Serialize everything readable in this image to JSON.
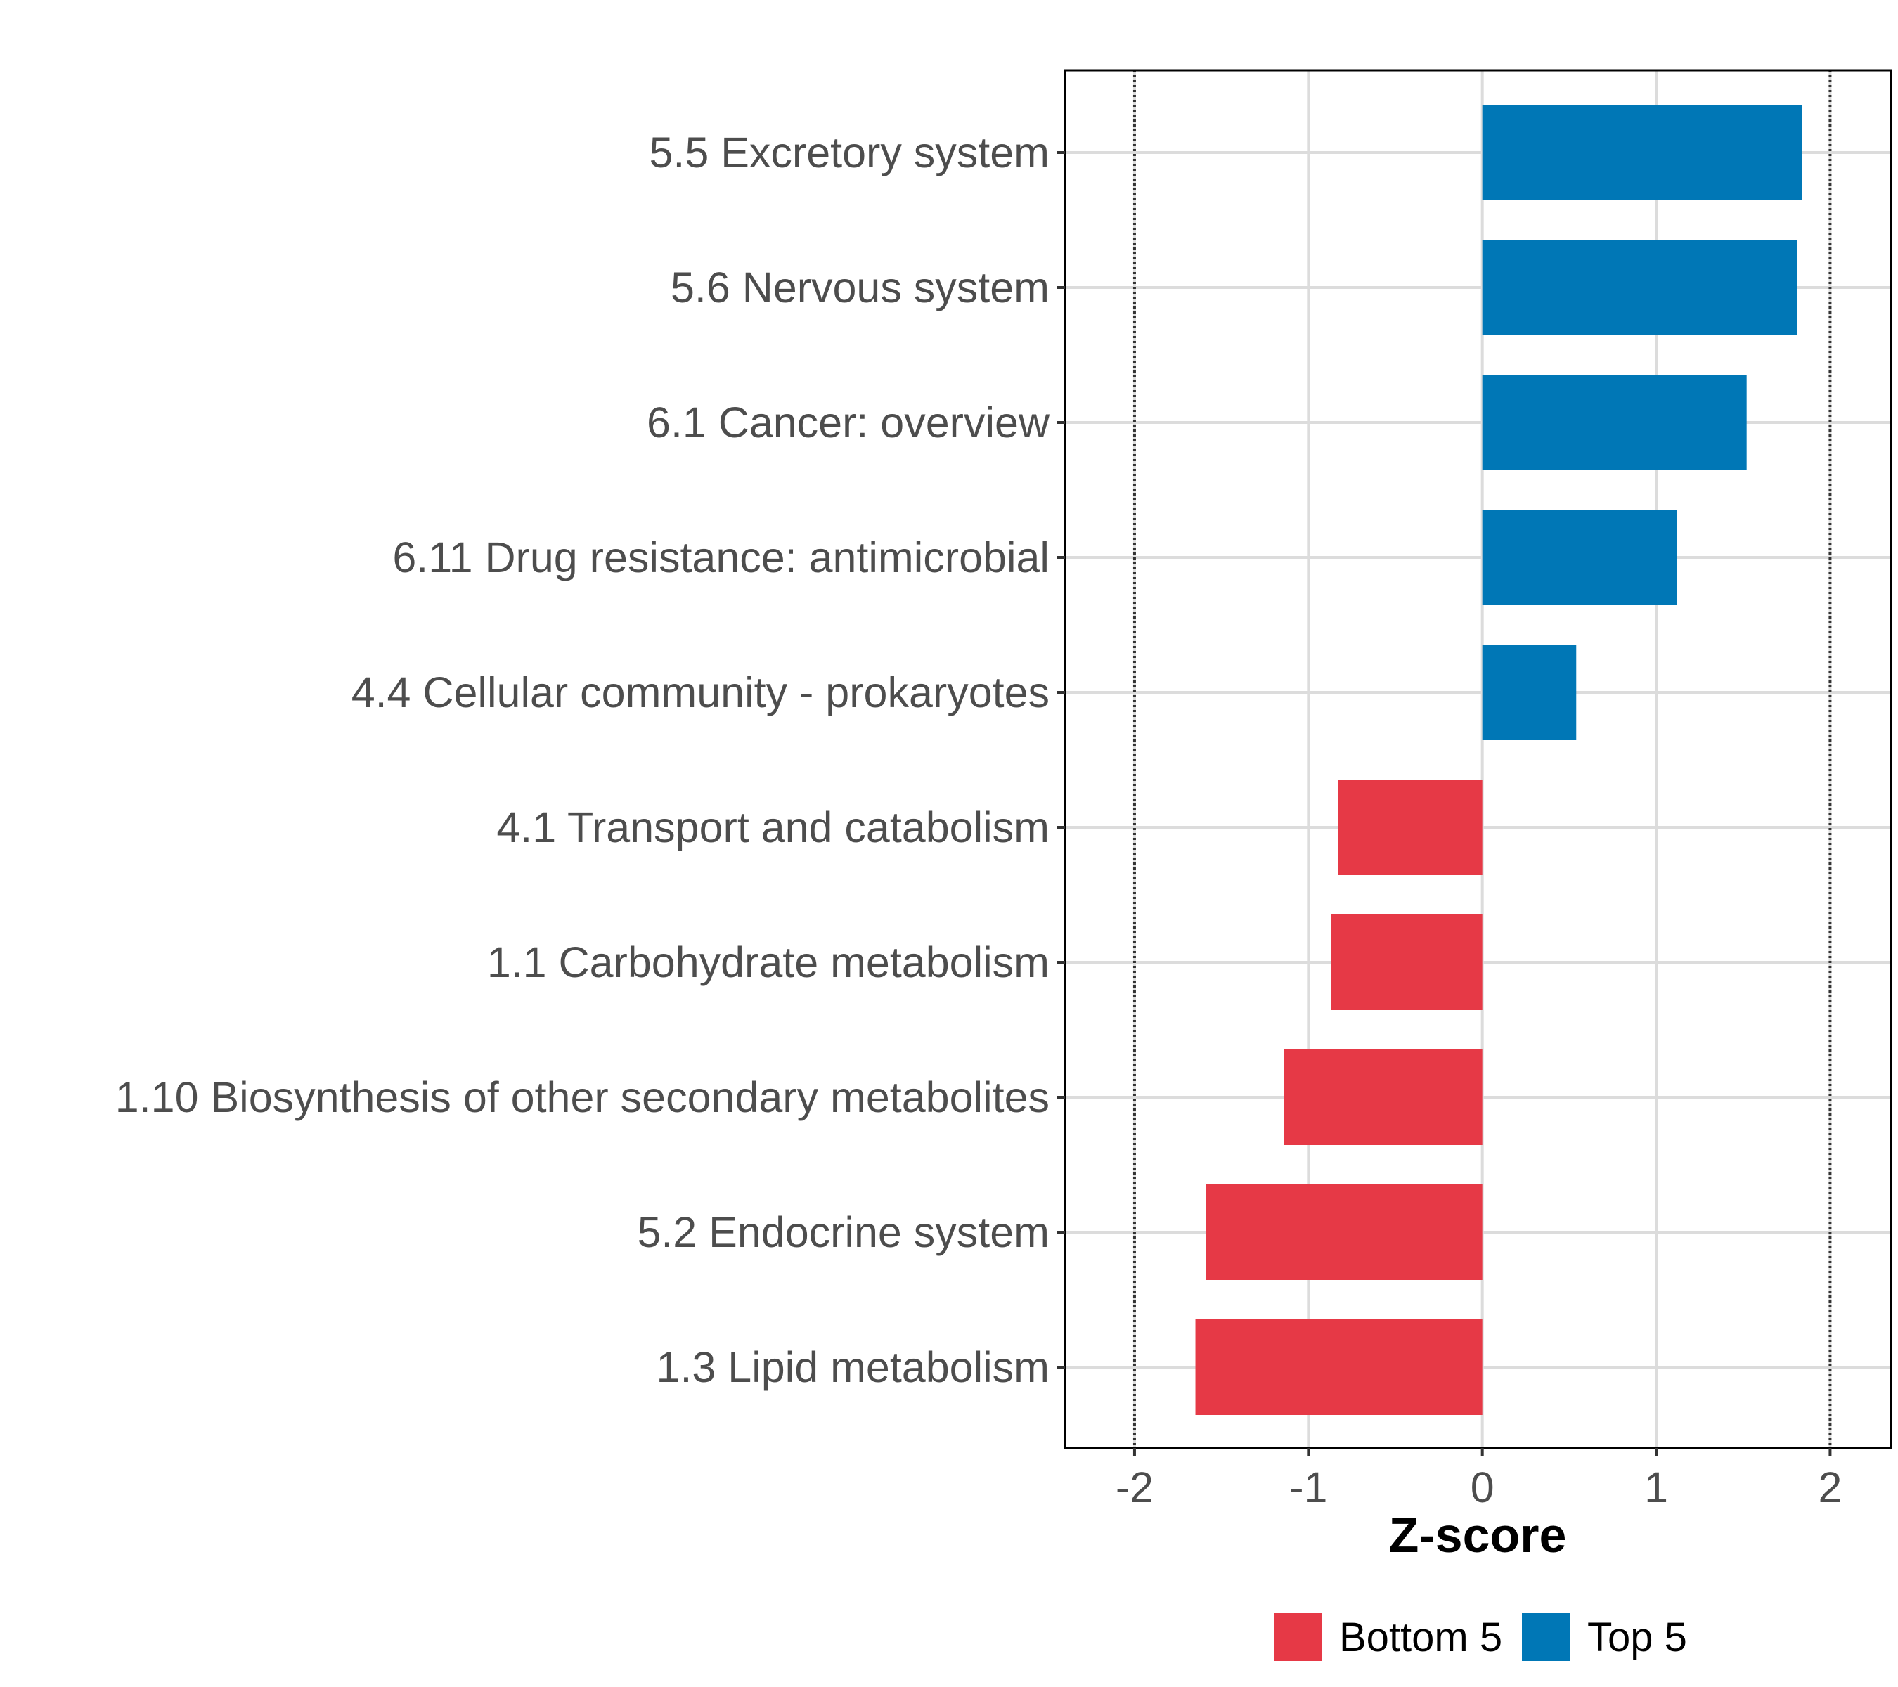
{
  "chart_data": {
    "type": "bar",
    "orientation": "horizontal",
    "title": "",
    "xlabel": "Z-score",
    "ylabel": "",
    "xlim": [
      -2.4,
      2.35
    ],
    "xticks": [
      -2,
      -1,
      0,
      1,
      2
    ],
    "xtick_labels": [
      "-2",
      "-1",
      "0",
      "1",
      "2"
    ],
    "reference_lines": [
      -2,
      2
    ],
    "grid": true,
    "categories": [
      "5.5 Excretory system",
      "5.6 Nervous system",
      "6.1 Cancer: overview",
      "6.11 Drug resistance: antimicrobial",
      "4.4 Cellular community - prokaryotes",
      "4.1 Transport and catabolism",
      "1.1 Carbohydrate metabolism",
      "1.10 Biosynthesis of other secondary metabolites",
      "5.2 Endocrine system",
      "1.3 Lipid metabolism"
    ],
    "values": [
      1.84,
      1.81,
      1.52,
      1.12,
      0.54,
      -0.83,
      -0.87,
      -1.14,
      -1.59,
      -1.65
    ],
    "groups": [
      "Top 5",
      "Top 5",
      "Top 5",
      "Top 5",
      "Top 5",
      "Bottom 5",
      "Bottom 5",
      "Bottom 5",
      "Bottom 5",
      "Bottom 5"
    ],
    "legend": [
      {
        "label": "Bottom 5",
        "color": "#e63946"
      },
      {
        "label": "Top 5",
        "color": "#0077b6"
      }
    ],
    "legend_position": "bottom"
  },
  "colors": {
    "top": "#0077b6",
    "bottom": "#e63946",
    "grid": "#dcdcdc",
    "text": "#4d4d4d"
  }
}
